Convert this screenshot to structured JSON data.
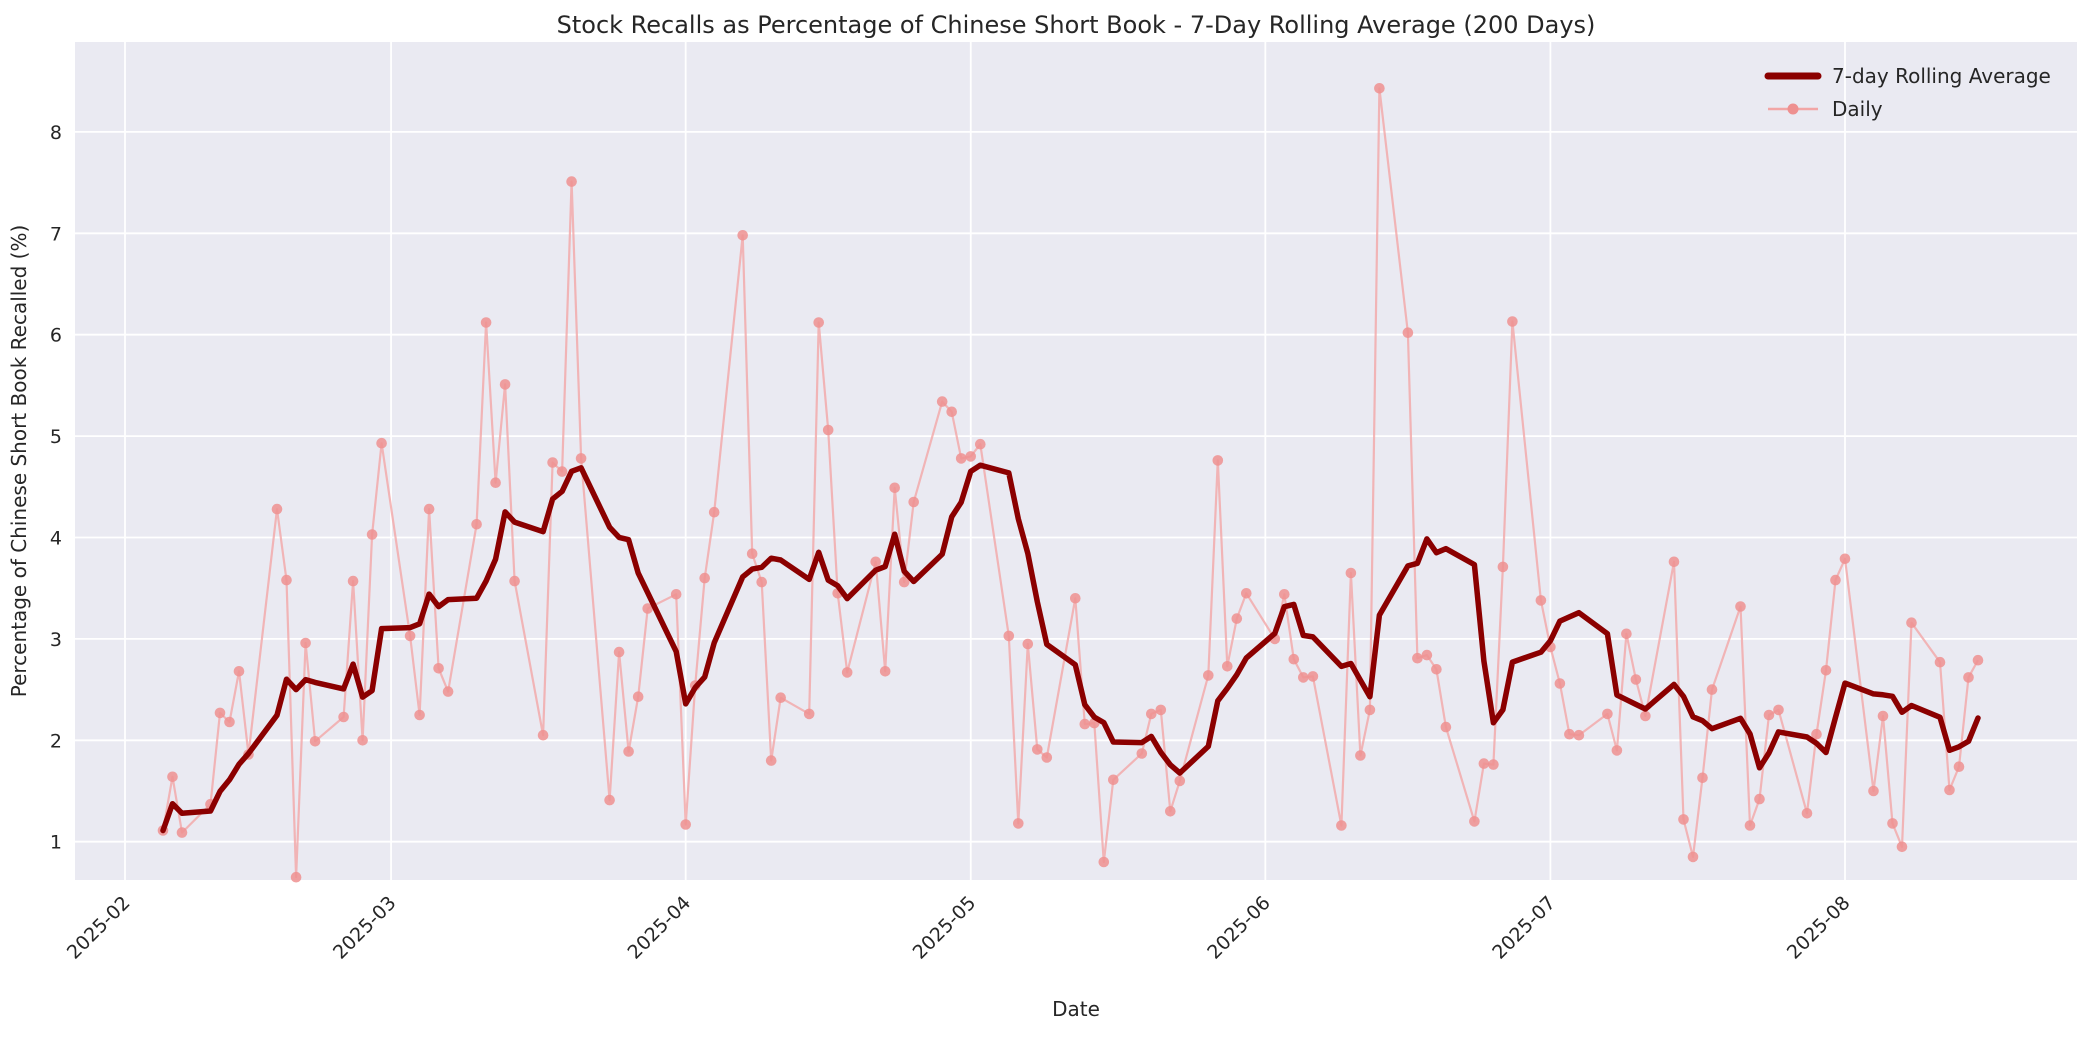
{
  "chart_data": {
    "type": "line",
    "title": "Stock Recalls as Percentage of Chinese Short Book - 7-Day Rolling Average (200 Days)",
    "xlabel": "Date",
    "ylabel": "Percentage of Chinese Short Book Recalled (%)",
    "ylim": [
      0.62,
      8.89
    ],
    "yticks": [
      1,
      2,
      3,
      4,
      5,
      6,
      7,
      8
    ],
    "xticks": [
      "2025-02",
      "2025-03",
      "2025-04",
      "2025-05",
      "2025-06",
      "2025-07",
      "2025-08"
    ],
    "grid": true,
    "legend_position": "upper right",
    "plot_background": "#eaeaf2",
    "gridline_color": "#ffffff",
    "series": [
      {
        "name": "7-day Rolling Average",
        "color": "#8b0000",
        "type": "rolling_mean_of_daily",
        "window": 7,
        "min_periods": 1,
        "linewidth": 5.5
      },
      {
        "name": "Daily",
        "color": "#f2a6a6",
        "marker_color": "#ee9090",
        "marker": "circle",
        "linewidth": 2.2
      }
    ],
    "dates": [
      "2025-02-05",
      "2025-02-06",
      "2025-02-07",
      "2025-02-10",
      "2025-02-11",
      "2025-02-12",
      "2025-02-13",
      "2025-02-14",
      "2025-02-17",
      "2025-02-18",
      "2025-02-19",
      "2025-02-20",
      "2025-02-21",
      "2025-02-24",
      "2025-02-25",
      "2025-02-26",
      "2025-02-27",
      "2025-02-28",
      "2025-03-03",
      "2025-03-04",
      "2025-03-05",
      "2025-03-06",
      "2025-03-07",
      "2025-03-10",
      "2025-03-11",
      "2025-03-12",
      "2025-03-13",
      "2025-03-14",
      "2025-03-17",
      "2025-03-18",
      "2025-03-19",
      "2025-03-20",
      "2025-03-21",
      "2025-03-24",
      "2025-03-25",
      "2025-03-26",
      "2025-03-27",
      "2025-03-28",
      "2025-03-31",
      "2025-04-01",
      "2025-04-02",
      "2025-04-03",
      "2025-04-04",
      "2025-04-07",
      "2025-04-08",
      "2025-04-09",
      "2025-04-10",
      "2025-04-11",
      "2025-04-14",
      "2025-04-15",
      "2025-04-16",
      "2025-04-17",
      "2025-04-18",
      "2025-04-21",
      "2025-04-22",
      "2025-04-23",
      "2025-04-24",
      "2025-04-25",
      "2025-04-28",
      "2025-04-29",
      "2025-04-30",
      "2025-05-01",
      "2025-05-02",
      "2025-05-05",
      "2025-05-06",
      "2025-05-07",
      "2025-05-08",
      "2025-05-09",
      "2025-05-12",
      "2025-05-13",
      "2025-05-14",
      "2025-05-15",
      "2025-05-16",
      "2025-05-19",
      "2025-05-20",
      "2025-05-21",
      "2025-05-22",
      "2025-05-23",
      "2025-05-26",
      "2025-05-27",
      "2025-05-28",
      "2025-05-29",
      "2025-05-30",
      "2025-06-02",
      "2025-06-03",
      "2025-06-04",
      "2025-06-05",
      "2025-06-06",
      "2025-06-09",
      "2025-06-10",
      "2025-06-11",
      "2025-06-12",
      "2025-06-13",
      "2025-06-16",
      "2025-06-17",
      "2025-06-18",
      "2025-06-19",
      "2025-06-20",
      "2025-06-23",
      "2025-06-24",
      "2025-06-25",
      "2025-06-26",
      "2025-06-27",
      "2025-06-30",
      "2025-07-01",
      "2025-07-02",
      "2025-07-03",
      "2025-07-04",
      "2025-07-07",
      "2025-07-08",
      "2025-07-09",
      "2025-07-10",
      "2025-07-11",
      "2025-07-14",
      "2025-07-15",
      "2025-07-16",
      "2025-07-17",
      "2025-07-18",
      "2025-07-21",
      "2025-07-22",
      "2025-07-23",
      "2025-07-24",
      "2025-07-25",
      "2025-07-28",
      "2025-07-29",
      "2025-07-30",
      "2025-07-31",
      "2025-08-01",
      "2025-08-04",
      "2025-08-05",
      "2025-08-06",
      "2025-08-07",
      "2025-08-08",
      "2025-08-11",
      "2025-08-12",
      "2025-08-13",
      "2025-08-14",
      "2025-08-15"
    ],
    "daily": [
      1.11,
      1.64,
      1.09,
      1.37,
      2.27,
      2.18,
      2.68,
      1.86,
      4.28,
      3.58,
      0.65,
      2.96,
      1.99,
      2.23,
      3.57,
      2.0,
      4.03,
      4.93,
      3.03,
      2.25,
      4.28,
      2.71,
      2.48,
      4.13,
      6.12,
      4.54,
      5.51,
      3.57,
      2.05,
      4.74,
      4.65,
      7.51,
      4.78,
      1.41,
      2.87,
      1.89,
      2.43,
      3.3,
      3.44,
      1.17,
      2.54,
      3.6,
      4.25,
      6.98,
      3.84,
      3.56,
      1.8,
      2.42,
      2.26,
      6.12,
      5.06,
      3.45,
      2.67,
      3.76,
      2.68,
      4.49,
      3.56,
      4.35,
      5.34,
      5.24,
      4.78,
      4.8,
      4.92,
      3.03,
      1.18,
      2.95,
      1.91,
      1.83,
      3.4,
      2.16,
      2.17,
      0.8,
      1.61,
      1.87,
      2.26,
      2.3,
      1.3,
      1.6,
      2.64,
      4.76,
      2.73,
      3.2,
      3.45,
      3.0,
      3.44,
      2.8,
      2.62,
      2.63,
      1.16,
      3.65,
      1.85,
      2.3,
      8.43,
      6.02,
      2.81,
      2.84,
      2.7,
      2.13,
      1.2,
      1.77,
      1.76,
      3.71,
      6.13,
      3.38,
      2.92,
      2.56,
      2.06,
      2.05,
      2.26,
      1.9,
      3.05,
      2.6,
      2.24,
      3.76,
      1.22,
      0.85,
      1.63,
      2.5,
      3.32,
      1.16,
      1.42,
      2.25,
      2.3,
      1.28,
      2.06,
      2.69,
      3.58,
      3.79,
      1.5,
      2.24,
      1.18,
      0.95,
      3.16,
      2.77,
      1.51,
      1.74,
      2.62,
      2.79
    ]
  },
  "legend": {
    "items": [
      {
        "label": "7-day Rolling Average"
      },
      {
        "label": "Daily"
      }
    ]
  }
}
